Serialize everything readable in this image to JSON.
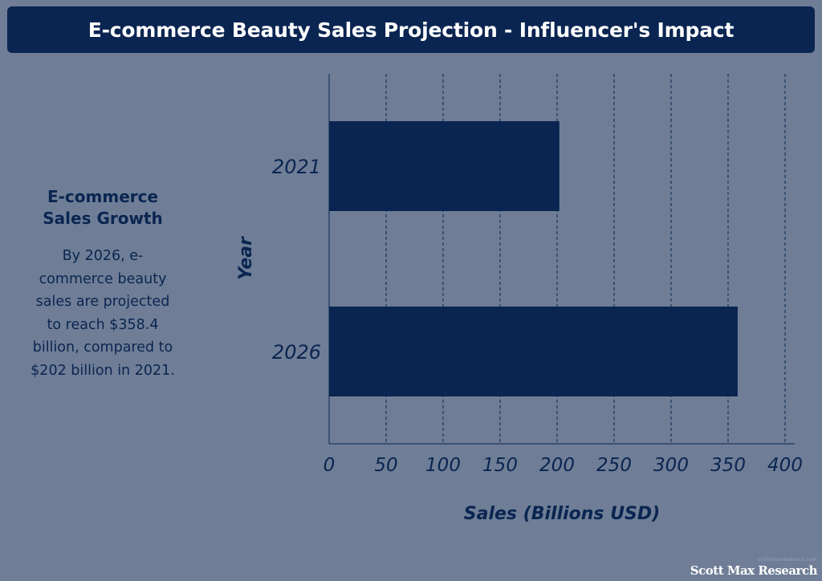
{
  "header": {
    "title": "E-commerce Beauty Sales Projection - Influencer's Impact"
  },
  "side_panel": {
    "heading": "E-commerce Sales Growth",
    "body": "By 2026, e-commerce beauty sales are projected to reach $358.4 billion, compared to $202 billion in 2021."
  },
  "footer": {
    "small_text": "scottmaxresearch.com",
    "brand": "Scott Max Research"
  },
  "chart_data": {
    "type": "bar",
    "orientation": "horizontal",
    "categories": [
      "2021",
      "2026"
    ],
    "values": [
      202,
      358.4
    ],
    "xlabel": "Sales (Billions USD)",
    "ylabel": "Year",
    "xlim": [
      0,
      410
    ],
    "xticks": [
      0,
      50,
      100,
      150,
      200,
      250,
      300,
      350,
      400
    ],
    "grid": "vertical-dashed",
    "colors": {
      "bar": "#0a2551",
      "background": "#6f7e96",
      "text": "#0a2551",
      "grid": "#0a2551"
    }
  }
}
